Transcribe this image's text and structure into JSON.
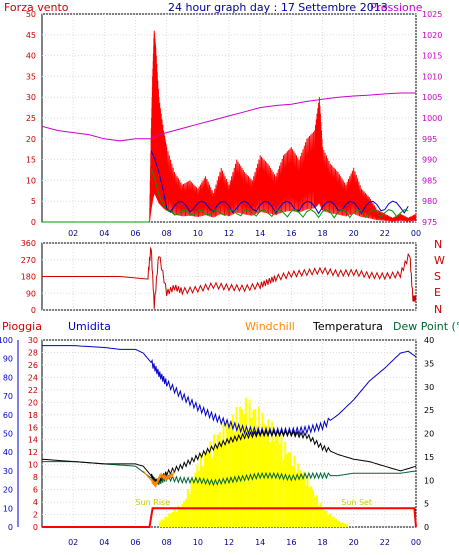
{
  "chart_data": [
    {
      "type": "line",
      "panel": "wind-pressure",
      "title": "24 hour graph day : 17 Settembre 2013",
      "series": [
        {
          "name": "Forza vento",
          "color": "#ff0000",
          "axis": "left",
          "x": [
            0,
            6.9,
            7.0,
            7.1,
            7.2,
            7.3,
            7.5,
            7.8,
            8,
            8.5,
            9,
            9.5,
            10,
            10.5,
            11,
            11.5,
            12,
            12.5,
            13,
            13.5,
            14,
            14.5,
            15,
            15.5,
            16,
            16.5,
            17,
            17.5,
            17.8,
            18,
            18.5,
            19,
            19.5,
            20,
            20.5,
            21,
            21.5,
            22,
            22.5,
            23,
            23.5,
            24
          ],
          "y": [
            0,
            0,
            20,
            35,
            46,
            42,
            30,
            22,
            18,
            12,
            9,
            10,
            8,
            11,
            7,
            13,
            9,
            15,
            12,
            10,
            16,
            14,
            11,
            16,
            18,
            15,
            20,
            22,
            30,
            18,
            14,
            12,
            9,
            13,
            8,
            6,
            3,
            2,
            1,
            2,
            1,
            2
          ]
        },
        {
          "name": "Pressione",
          "color": "#cc00cc",
          "axis": "right",
          "x": [
            0,
            1,
            2,
            3,
            4,
            5,
            6,
            7,
            7.5,
            8,
            9,
            10,
            11,
            12,
            13,
            14,
            15,
            16,
            17,
            18,
            19,
            20,
            21,
            22,
            23,
            24
          ],
          "y": [
            998,
            997,
            996.5,
            996,
            995,
            994.5,
            995,
            995,
            996,
            996.5,
            997.5,
            998.5,
            999.5,
            1000.5,
            1001.5,
            1002.5,
            1003,
            1003.3,
            1004,
            1004.5,
            1005,
            1005.3,
            1005.5,
            1005.8,
            1006,
            1006
          ]
        }
      ],
      "yleft": {
        "label": "Forza vento",
        "ticks": [
          0,
          5,
          10,
          15,
          20,
          25,
          30,
          35,
          40,
          45,
          50
        ]
      },
      "yright": {
        "label": "Pressione",
        "ticks": [
          975,
          980,
          985,
          990,
          995,
          1000,
          1005,
          1010,
          1015,
          1020,
          1025
        ]
      },
      "xticks": [
        "02",
        "04",
        "06",
        "08",
        "10",
        "12",
        "14",
        "16",
        "18",
        "20",
        "22",
        "00"
      ]
    },
    {
      "type": "line",
      "panel": "wind-direction",
      "series": [
        {
          "name": "Direzione",
          "color": "#cc0000",
          "x": [
            0,
            5,
            6.8,
            7.0,
            7.2,
            7.5,
            8,
            8.5,
            9,
            10,
            11,
            12,
            13,
            14,
            14.5,
            15,
            16,
            17,
            18,
            19,
            20,
            21,
            22,
            23,
            23.6,
            23.8,
            24
          ],
          "y": [
            180,
            180,
            180,
            340,
            20,
            300,
            90,
            120,
            100,
            110,
            130,
            120,
            115,
            130,
            150,
            170,
            190,
            200,
            210,
            195,
            200,
            185,
            180,
            190,
            300,
            60,
            60
          ]
        }
      ],
      "yleft": {
        "ticks": [
          0,
          90,
          180,
          270,
          360
        ]
      },
      "yright": {
        "ticks": [
          "N",
          "W",
          "S",
          "E",
          "N"
        ]
      }
    },
    {
      "type": "line",
      "panel": "rain-humidity-temp",
      "legend": [
        "Pioggia",
        "Umidita",
        "Windchill",
        "Temperatura",
        "Dew Point (°C"
      ],
      "series": [
        {
          "name": "Umidita",
          "color": "#0000cc",
          "axis": "left-humidity",
          "x": [
            0,
            2,
            4,
            5,
            6,
            6.5,
            7,
            7.5,
            8,
            9,
            10,
            11,
            12,
            13,
            14,
            15,
            16,
            17,
            18,
            19,
            20,
            21,
            22,
            23,
            23.5,
            24
          ],
          "y": [
            97,
            97,
            96,
            95,
            95,
            93,
            88,
            82,
            77,
            70,
            64,
            59,
            55,
            52,
            51,
            51,
            51,
            52,
            54,
            60,
            68,
            78,
            85,
            93,
            94,
            91
          ]
        },
        {
          "name": "Temperatura",
          "color": "#000000",
          "axis": "right",
          "x": [
            0,
            2,
            4,
            5,
            6,
            6.5,
            7,
            7.3,
            7.5,
            8,
            9,
            10,
            11,
            12,
            13,
            14,
            15,
            16,
            17,
            18,
            19,
            20,
            21,
            22,
            23,
            24
          ],
          "y": [
            14.5,
            14,
            13.5,
            13.5,
            13.5,
            13,
            11,
            9.5,
            10,
            11.5,
            13,
            15,
            17,
            18.5,
            19.5,
            20,
            20,
            20,
            19.5,
            17,
            15.5,
            14.5,
            14,
            13,
            12,
            13
          ]
        },
        {
          "name": "Dew Point (°C",
          "color": "#006633",
          "axis": "right",
          "x": [
            0,
            2,
            4,
            6,
            7,
            7.5,
            8,
            9,
            10,
            11,
            12,
            13,
            14,
            15,
            16,
            17,
            18,
            19,
            20,
            21,
            22,
            23,
            24
          ],
          "y": [
            14,
            14,
            13.5,
            13,
            10.5,
            9.5,
            10.5,
            10,
            10,
            9.5,
            10,
            10.5,
            11,
            11,
            10.5,
            11,
            11,
            11,
            11.5,
            11.5,
            11.5,
            11.5,
            12
          ]
        },
        {
          "name": "Windchill",
          "color": "#ff8800",
          "axis": "right",
          "x": [
            6.5,
            7,
            7.3,
            7.6,
            8,
            8.5
          ],
          "y": [
            12,
            10,
            9,
            11,
            10.5,
            11.5
          ]
        },
        {
          "name": "Pioggia",
          "color": "#ff0000",
          "axis": "left-rain",
          "x": [
            0,
            6.9,
            7.1,
            23.9,
            24
          ],
          "y": [
            0,
            0,
            3,
            3,
            0
          ]
        }
      ],
      "solar": {
        "color": "#ffff00",
        "x": [
          7,
          8,
          9,
          10,
          11,
          12,
          13,
          14,
          15,
          16,
          17,
          18,
          19,
          20
        ],
        "y": [
          0,
          2,
          4,
          11,
          15,
          18,
          21,
          19,
          16,
          12,
          8,
          3,
          1,
          0
        ]
      },
      "annotations": [
        "Sun Rise",
        "Sun Set"
      ],
      "yleft_humidity": {
        "ticks": [
          0,
          10,
          20,
          30,
          40,
          50,
          60,
          70,
          80,
          90,
          100
        ]
      },
      "yleft_rain": {
        "ticks": [
          0,
          2,
          4,
          6,
          8,
          10,
          12,
          14,
          16,
          18,
          20,
          22,
          24,
          26,
          28,
          30
        ]
      },
      "yright": {
        "ticks": [
          0,
          5,
          10,
          15,
          20,
          25,
          30,
          35,
          40
        ]
      },
      "xticks": [
        "02",
        "04",
        "06",
        "08",
        "10",
        "12",
        "14",
        "16",
        "18",
        "20",
        "22",
        "00"
      ]
    }
  ],
  "labels": {
    "forza_vento": "Forza vento",
    "pressione": "Pressione",
    "compass": [
      "N",
      "W",
      "S",
      "E",
      "N"
    ],
    "pioggia": "Pioggia",
    "umidita": "Umidita",
    "windchill": "Windchill",
    "temperatura": "Temperatura",
    "dewpoint": "Dew Point (°C",
    "sunrise": "Sun Rise",
    "sunset": "Sun Set"
  }
}
